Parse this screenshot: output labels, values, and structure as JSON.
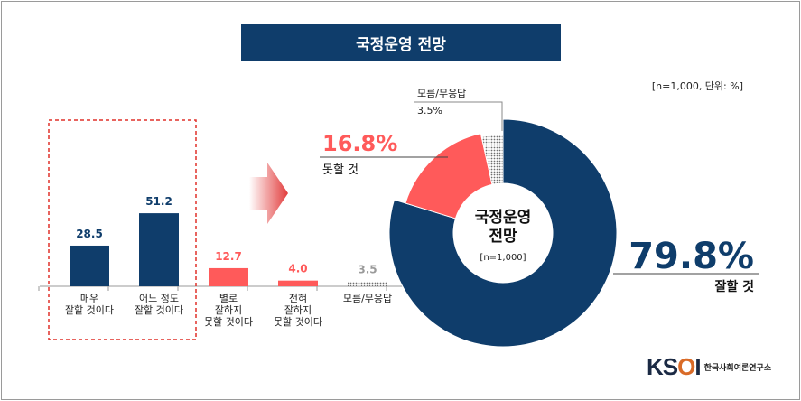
{
  "title": "국정운영 전망",
  "meta": "[n=1,000,  단위: %]",
  "colors": {
    "navy": "#0f3d6b",
    "red": "#ff5a5a",
    "gray": "#9a9a9a",
    "dashed_box": "#e0302a"
  },
  "chart_data": [
    {
      "type": "bar",
      "categories": [
        "매우|잘할 것이다",
        "어느 정도|잘할 것이다",
        "별로|잘하지|못할 것이다",
        "전혀|잘하지|못할 것이다",
        "모름/무응답"
      ],
      "values": [
        28.5,
        51.2,
        12.7,
        4.0,
        3.5
      ],
      "value_labels": [
        "28.5",
        "51.2",
        "12.7",
        "4.0",
        "3.5"
      ],
      "colors": [
        "#0f3d6b",
        "#0f3d6b",
        "#ff5a5a",
        "#ff5a5a",
        "#9a9a9a"
      ]
    },
    {
      "type": "pie",
      "center_label": [
        "국정운영",
        "전망"
      ],
      "center_sub": "[n=1,000]",
      "slices": [
        {
          "name": "잘할 것",
          "value": 79.8,
          "label": "79.8%",
          "color": "#0f3d6b"
        },
        {
          "name": "못할 것",
          "value": 16.8,
          "label": "16.8%",
          "color": "#ff5a5a"
        },
        {
          "name": "모름/무응답",
          "value": 3.5,
          "label": "3.5%",
          "color": "#9a9a9a"
        }
      ]
    }
  ],
  "logo": {
    "mark": "KSOI",
    "text": "한국사회여론연구소"
  }
}
